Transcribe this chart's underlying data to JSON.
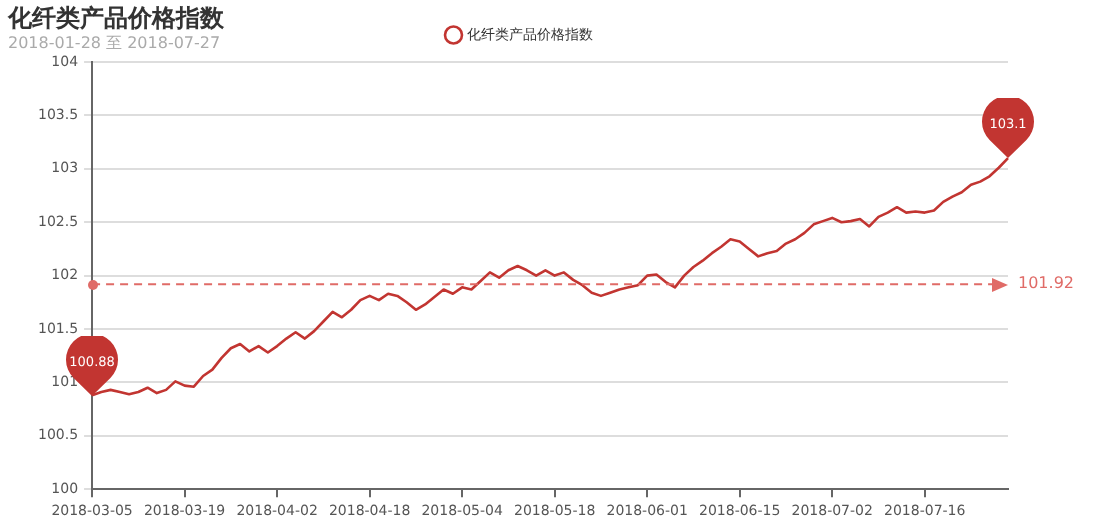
{
  "chart_data": {
    "type": "line",
    "title": "化纤类产品价格指数",
    "subtitle": "2018-01-28 至 2018-07-27",
    "categories": [
      "2018-03-05",
      null,
      null,
      null,
      null,
      null,
      null,
      null,
      null,
      null,
      "2018-03-19",
      null,
      null,
      null,
      null,
      null,
      null,
      null,
      null,
      null,
      "2018-04-02",
      null,
      null,
      null,
      null,
      null,
      null,
      null,
      null,
      null,
      "2018-04-18",
      null,
      null,
      null,
      null,
      null,
      null,
      null,
      null,
      null,
      "2018-05-04",
      null,
      null,
      null,
      null,
      null,
      null,
      null,
      null,
      null,
      "2018-05-18",
      null,
      null,
      null,
      null,
      null,
      null,
      null,
      null,
      null,
      "2018-06-01",
      null,
      null,
      null,
      null,
      null,
      null,
      null,
      null,
      null,
      "2018-06-15",
      null,
      null,
      null,
      null,
      null,
      null,
      null,
      null,
      null,
      "2018-07-02",
      null,
      null,
      null,
      null,
      null,
      null,
      null,
      null,
      null,
      "2018-07-16",
      null,
      null,
      null,
      null,
      null,
      null,
      null,
      null,
      null
    ],
    "series": [
      {
        "name": "化纤类产品价格指数",
        "color": "#c23531",
        "values": [
          100.88,
          100.91,
          100.93,
          100.91,
          100.89,
          100.91,
          100.95,
          100.9,
          100.93,
          101.01,
          100.97,
          100.96,
          101.06,
          101.12,
          101.23,
          101.32,
          101.36,
          101.29,
          101.34,
          101.28,
          101.34,
          101.41,
          101.47,
          101.41,
          101.48,
          101.57,
          101.66,
          101.61,
          101.68,
          101.77,
          101.81,
          101.77,
          101.83,
          101.81,
          101.75,
          101.68,
          101.73,
          101.8,
          101.87,
          101.83,
          101.89,
          101.87,
          101.95,
          102.03,
          101.98,
          102.05,
          102.09,
          102.05,
          102.0,
          102.05,
          102.0,
          102.03,
          101.96,
          101.91,
          101.84,
          101.81,
          101.84,
          101.87,
          101.89,
          101.91,
          102.0,
          102.01,
          101.94,
          101.89,
          102.0,
          102.08,
          102.14,
          102.21,
          102.27,
          102.34,
          102.32,
          102.25,
          102.18,
          102.21,
          102.23,
          102.3,
          102.34,
          102.4,
          102.48,
          102.51,
          102.54,
          102.5,
          102.51,
          102.53,
          102.46,
          102.55,
          102.59,
          102.64,
          102.59,
          102.6,
          102.59,
          102.61,
          102.69,
          102.74,
          102.78,
          102.85,
          102.88,
          102.93,
          103.01,
          103.1
        ]
      }
    ],
    "ylim": [
      100,
      104
    ],
    "yticks": [
      100,
      100.5,
      101,
      101.5,
      102,
      102.5,
      103,
      103.5,
      104
    ],
    "grid": "y",
    "legend": "top",
    "marker": "none",
    "line_style": "solid",
    "ref_lines": [
      {
        "axis": "y",
        "value": 101.92,
        "label": "101.92",
        "color": "#e06b67",
        "line_style": "dashed"
      }
    ],
    "annotations": [
      {
        "text": "100.88",
        "x": "2018-03-05",
        "y": 100.88
      },
      {
        "text": "103.1",
        "y": 103.1
      }
    ]
  }
}
